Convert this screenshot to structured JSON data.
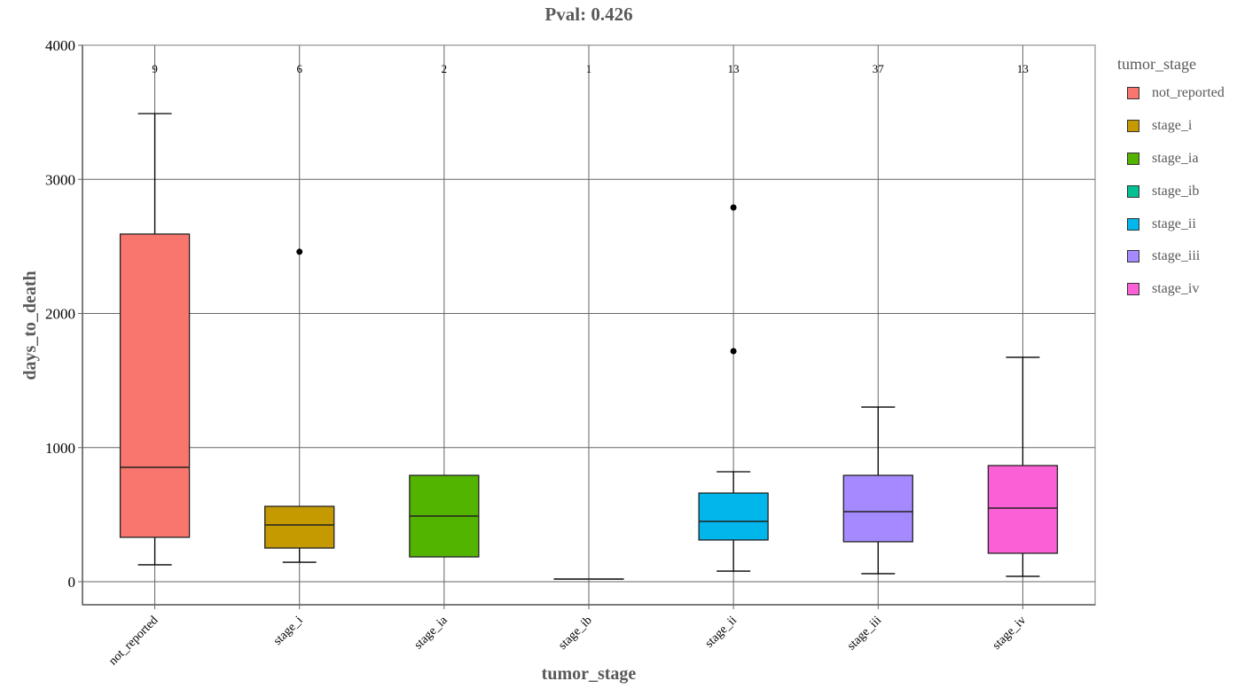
{
  "chart_data": {
    "type": "box",
    "title": "Pval: 0.426",
    "xlabel": "tumor_stage",
    "ylabel": "days_to_death",
    "ylim": [
      -170,
      4000
    ],
    "yticks": [
      0,
      1000,
      2000,
      3000,
      4000
    ],
    "grid": true,
    "legend_position": "right",
    "legend_title": "tumor_stage",
    "categories": [
      "not_reported",
      "stage_i",
      "stage_ia",
      "stage_ib",
      "stage_ii",
      "stage_iii",
      "stage_iv"
    ],
    "counts": [
      9,
      6,
      2,
      1,
      13,
      37,
      13
    ],
    "colors": [
      "#F8766D",
      "#C49A00",
      "#53B400",
      "#00C094",
      "#00B6EB",
      "#A58AFF",
      "#FB61D7"
    ],
    "series": [
      {
        "name": "not_reported",
        "whisker_low": 126,
        "q1": 331,
        "median": 853,
        "q3": 2592,
        "whisker_high": 3490,
        "outliers": []
      },
      {
        "name": "stage_i",
        "whisker_low": 145,
        "q1": 251,
        "median": 423,
        "q3": 562,
        "whisker_high": 562,
        "outliers": [
          2460
        ]
      },
      {
        "name": "stage_ia",
        "whisker_low": 185,
        "q1": 185,
        "median": 489,
        "q3": 793,
        "whisker_high": 793,
        "outliers": []
      },
      {
        "name": "stage_ib",
        "whisker_low": 20,
        "q1": 20,
        "median": 20,
        "q3": 20,
        "whisker_high": 20,
        "outliers": []
      },
      {
        "name": "stage_ii",
        "whisker_low": 79,
        "q1": 311,
        "median": 450,
        "q3": 661,
        "whisker_high": 820,
        "outliers": [
          1719,
          2790
        ]
      },
      {
        "name": "stage_iii",
        "whisker_low": 60,
        "q1": 298,
        "median": 522,
        "q3": 793,
        "whisker_high": 1302,
        "outliers": []
      },
      {
        "name": "stage_iv",
        "whisker_low": 40,
        "q1": 212,
        "median": 549,
        "q3": 866,
        "whisker_high": 1673,
        "outliers": []
      }
    ]
  },
  "legend": {
    "title": "tumor_stage",
    "items": [
      {
        "label": "not_reported",
        "color": "#F8766D"
      },
      {
        "label": "stage_i",
        "color": "#C49A00"
      },
      {
        "label": "stage_ia",
        "color": "#53B400"
      },
      {
        "label": "stage_ib",
        "color": "#00C094"
      },
      {
        "label": "stage_ii",
        "color": "#00B6EB"
      },
      {
        "label": "stage_iii",
        "color": "#A58AFF"
      },
      {
        "label": "stage_iv",
        "color": "#FB61D7"
      }
    ]
  }
}
